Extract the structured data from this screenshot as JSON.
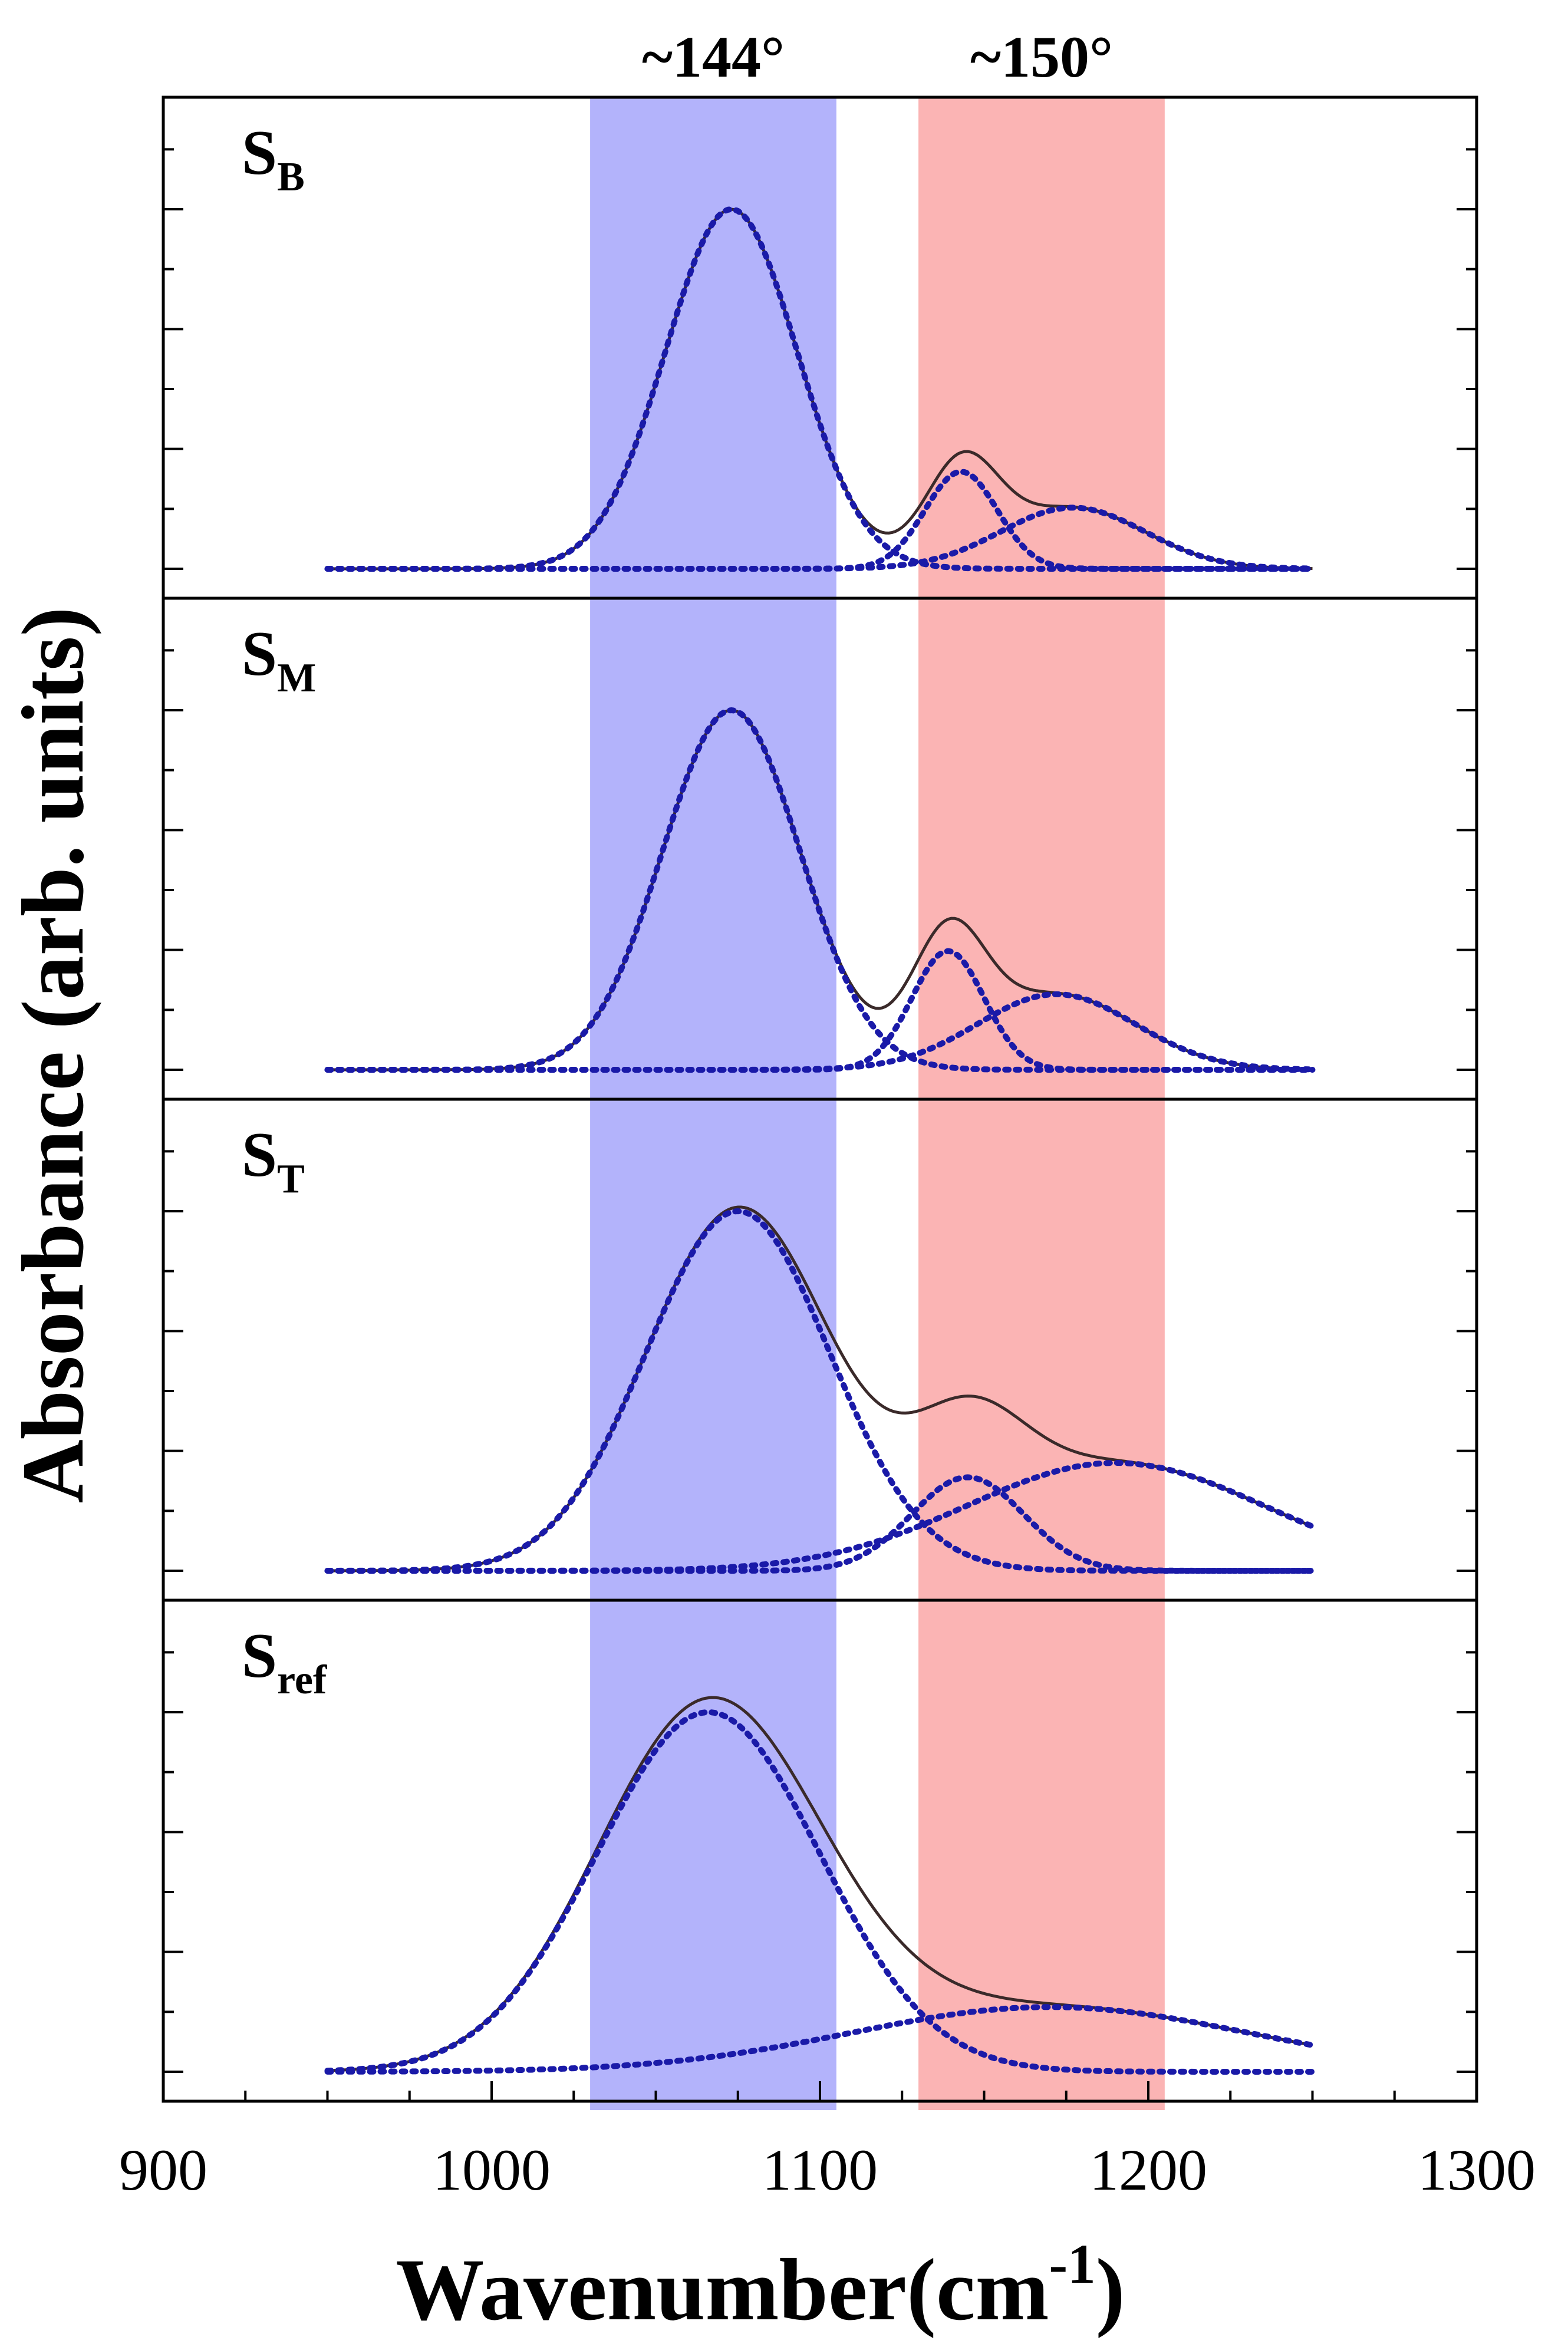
{
  "chart_data": {
    "type": "line",
    "title": "",
    "xlabel": "Wavenumber(cm",
    "xlabel_sup": "-1",
    "xlabel_end": ")",
    "ylabel": "Absorbance (arb. units)",
    "xlim": [
      900,
      1300
    ],
    "x_ticks": [
      "900",
      "1000",
      "1100",
      "1200",
      "1300"
    ],
    "x_tick_values": [
      900,
      1000,
      1100,
      1200,
      1300
    ],
    "highlight_bands": [
      {
        "label": "~144°",
        "x_range": [
          1030,
          1105
        ],
        "color": "#b3b3fb"
      },
      {
        "label": "~150°",
        "x_range": [
          1130,
          1205
        ],
        "color": "#fbb4b4"
      }
    ],
    "panels": [
      {
        "label_main": "S",
        "label_sub": "B",
        "peak1": {
          "center": 1073,
          "height": 1.0,
          "sigma": 20
        },
        "peak2": {
          "center": 1143,
          "height": 0.27,
          "sigma": 11
        },
        "peak3": {
          "center": 1177,
          "height": 0.17,
          "sigma": 22
        }
      },
      {
        "label_main": "S",
        "label_sub": "M",
        "peak1": {
          "center": 1073,
          "height": 1.0,
          "sigma": 21
        },
        "peak2": {
          "center": 1139,
          "height": 0.33,
          "sigma": 11
        },
        "peak3": {
          "center": 1172,
          "height": 0.21,
          "sigma": 24
        }
      },
      {
        "label_main": "S",
        "label_sub": "T",
        "peak1": {
          "center": 1075,
          "height": 1.0,
          "sigma": 28
        },
        "peak2": {
          "center": 1145,
          "height": 0.26,
          "sigma": 17
        },
        "peak3": {
          "center": 1190,
          "height": 0.3,
          "sigma": 45
        }
      },
      {
        "label_main": "S",
        "label_sub": "ref",
        "peak1": {
          "center": 1066,
          "height": 1.0,
          "sigma": 34
        },
        "peak2": {
          "center": 1170,
          "height": 0.18,
          "sigma": 60
        },
        "peak3": {
          "center": 1200,
          "height": 0.0,
          "sigma": 30
        }
      }
    ]
  }
}
